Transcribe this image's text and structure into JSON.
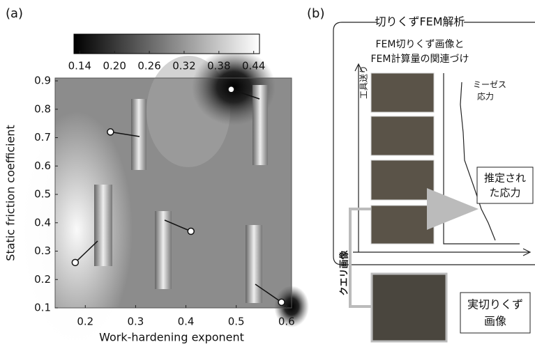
{
  "panel_a": {
    "label": "(a)",
    "colorbar": {
      "lim": [
        0.13,
        0.45
      ],
      "ticks": [
        0.14,
        {
          "value": 0.2,
          "label": "0.20"
        },
        0.26,
        0.32,
        0.38,
        0.44
      ]
    },
    "xlabel": "Work-hardening exponent",
    "ylabel": "Static friction coefficient",
    "xlim": [
      0.14,
      0.61
    ],
    "ylim": [
      0.1,
      0.91
    ],
    "xticks": [
      0.2,
      0.3,
      0.4,
      0.5,
      0.6
    ],
    "yticks": [
      0.1,
      0.2,
      0.3,
      0.4,
      0.5,
      0.6,
      0.7,
      0.8,
      0.9
    ],
    "markers": {
      "x": [
        0.25,
        0.49,
        0.18,
        0.41,
        0.59
      ],
      "y": [
        0.72,
        0.87,
        0.26,
        0.37,
        0.12
      ]
    }
  },
  "panel_b": {
    "label": "(b)",
    "title": "切りくずFEM解析",
    "subtitle": [
      "FEM切りくず画像と",
      "FEM計算量の関連づけ"
    ],
    "y_axis_label": "工具送り",
    "curve_label": [
      "ミーゼス",
      "応力"
    ],
    "estimate_label": [
      "推定され",
      "た応力"
    ],
    "query_label": "クエリ画像",
    "real_label": [
      "実切りくず",
      "画像"
    ]
  }
}
